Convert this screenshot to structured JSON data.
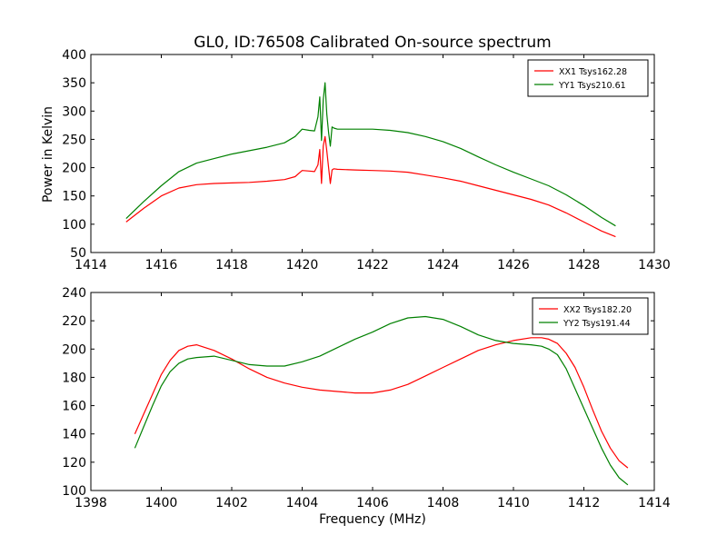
{
  "title": "GL0, ID:76508 Calibrated On-source spectrum",
  "colors": {
    "xx": "#ff0000",
    "yy": "#008000",
    "axes": "#000000"
  },
  "chart_data": [
    {
      "type": "line",
      "panel": "top",
      "xlabel": "",
      "ylabel": "Power in Kelvin",
      "xlim": [
        1414,
        1430
      ],
      "ylim": [
        50,
        400
      ],
      "xticks": [
        1414,
        1416,
        1418,
        1420,
        1422,
        1424,
        1426,
        1428,
        1430
      ],
      "yticks": [
        50,
        100,
        150,
        200,
        250,
        300,
        350,
        400
      ],
      "legend_position": "top-right",
      "series": [
        {
          "name": "XX1 Tsys162.28",
          "color": "#ff0000",
          "x": [
            1415.0,
            1415.5,
            1416.0,
            1416.5,
            1417.0,
            1417.5,
            1418.0,
            1418.5,
            1419.0,
            1419.5,
            1419.8,
            1420.0,
            1420.2,
            1420.35,
            1420.45,
            1420.5,
            1420.55,
            1420.6,
            1420.65,
            1420.7,
            1420.75,
            1420.8,
            1420.85,
            1420.9,
            1421.0,
            1421.5,
            1422.0,
            1422.5,
            1423.0,
            1423.5,
            1424.0,
            1424.5,
            1425.0,
            1425.5,
            1426.0,
            1426.5,
            1427.0,
            1427.5,
            1428.0,
            1428.5,
            1428.9
          ],
          "y": [
            104,
            128,
            150,
            164,
            170,
            172,
            173,
            174,
            176,
            179,
            184,
            195,
            194,
            193,
            205,
            232,
            172,
            238,
            255,
            230,
            200,
            172,
            196,
            198,
            197,
            196,
            195,
            194,
            192,
            187,
            182,
            176,
            168,
            160,
            152,
            144,
            134,
            120,
            104,
            88,
            78
          ]
        },
        {
          "name": "YY1 Tsys210.61",
          "color": "#008000",
          "x": [
            1415.0,
            1415.5,
            1416.0,
            1416.5,
            1417.0,
            1417.5,
            1418.0,
            1418.5,
            1419.0,
            1419.5,
            1419.8,
            1420.0,
            1420.2,
            1420.35,
            1420.45,
            1420.5,
            1420.55,
            1420.6,
            1420.65,
            1420.7,
            1420.75,
            1420.8,
            1420.85,
            1420.9,
            1421.0,
            1421.5,
            1422.0,
            1422.5,
            1423.0,
            1423.5,
            1424.0,
            1424.5,
            1425.0,
            1425.5,
            1426.0,
            1426.5,
            1427.0,
            1427.5,
            1428.0,
            1428.5,
            1428.9
          ],
          "y": [
            110,
            140,
            168,
            193,
            208,
            216,
            224,
            230,
            236,
            244,
            255,
            268,
            266,
            265,
            290,
            325,
            248,
            320,
            350,
            295,
            262,
            238,
            272,
            270,
            268,
            268,
            268,
            266,
            262,
            255,
            246,
            234,
            219,
            205,
            192,
            180,
            168,
            152,
            133,
            112,
            97
          ]
        }
      ]
    },
    {
      "type": "line",
      "panel": "bottom",
      "xlabel": "Frequency (MHz)",
      "ylabel": "",
      "xlim": [
        1398,
        1414
      ],
      "ylim": [
        100,
        240
      ],
      "xticks": [
        1398,
        1400,
        1402,
        1404,
        1406,
        1408,
        1410,
        1412,
        1414
      ],
      "yticks": [
        100,
        120,
        140,
        160,
        180,
        200,
        220,
        240
      ],
      "legend_position": "top-right",
      "series": [
        {
          "name": "XX2 Tsys182.20",
          "color": "#ff0000",
          "x": [
            1399.25,
            1399.5,
            1399.75,
            1400.0,
            1400.25,
            1400.5,
            1400.75,
            1401.0,
            1401.5,
            1402.0,
            1402.5,
            1403.0,
            1403.5,
            1404.0,
            1404.5,
            1405.0,
            1405.5,
            1406.0,
            1406.5,
            1407.0,
            1407.5,
            1408.0,
            1408.5,
            1409.0,
            1409.5,
            1410.0,
            1410.5,
            1410.8,
            1411.0,
            1411.25,
            1411.5,
            1411.75,
            1412.0,
            1412.25,
            1412.5,
            1412.75,
            1413.0,
            1413.25
          ],
          "y": [
            140,
            154,
            168,
            182,
            192,
            199,
            202,
            203,
            199,
            193,
            186,
            180,
            176,
            173,
            171,
            170,
            169,
            169,
            171,
            175,
            181,
            187,
            193,
            199,
            203,
            206,
            208,
            208,
            207,
            204,
            197,
            187,
            173,
            157,
            142,
            130,
            121,
            116
          ]
        },
        {
          "name": "YY2 Tsys191.44",
          "color": "#008000",
          "x": [
            1399.25,
            1399.5,
            1399.75,
            1400.0,
            1400.25,
            1400.5,
            1400.75,
            1401.0,
            1401.5,
            1402.0,
            1402.5,
            1403.0,
            1403.5,
            1404.0,
            1404.5,
            1405.0,
            1405.5,
            1406.0,
            1406.5,
            1407.0,
            1407.5,
            1408.0,
            1408.5,
            1409.0,
            1409.5,
            1410.0,
            1410.5,
            1410.8,
            1411.0,
            1411.25,
            1411.5,
            1411.75,
            1412.0,
            1412.25,
            1412.5,
            1412.75,
            1413.0,
            1413.25
          ],
          "y": [
            130,
            145,
            160,
            174,
            184,
            190,
            193,
            194,
            195,
            192,
            189,
            188,
            188,
            191,
            195,
            201,
            207,
            212,
            218,
            222,
            223,
            221,
            216,
            210,
            206,
            204,
            203,
            202,
            200,
            196,
            186,
            172,
            158,
            144,
            130,
            118,
            109,
            104
          ]
        }
      ]
    }
  ]
}
